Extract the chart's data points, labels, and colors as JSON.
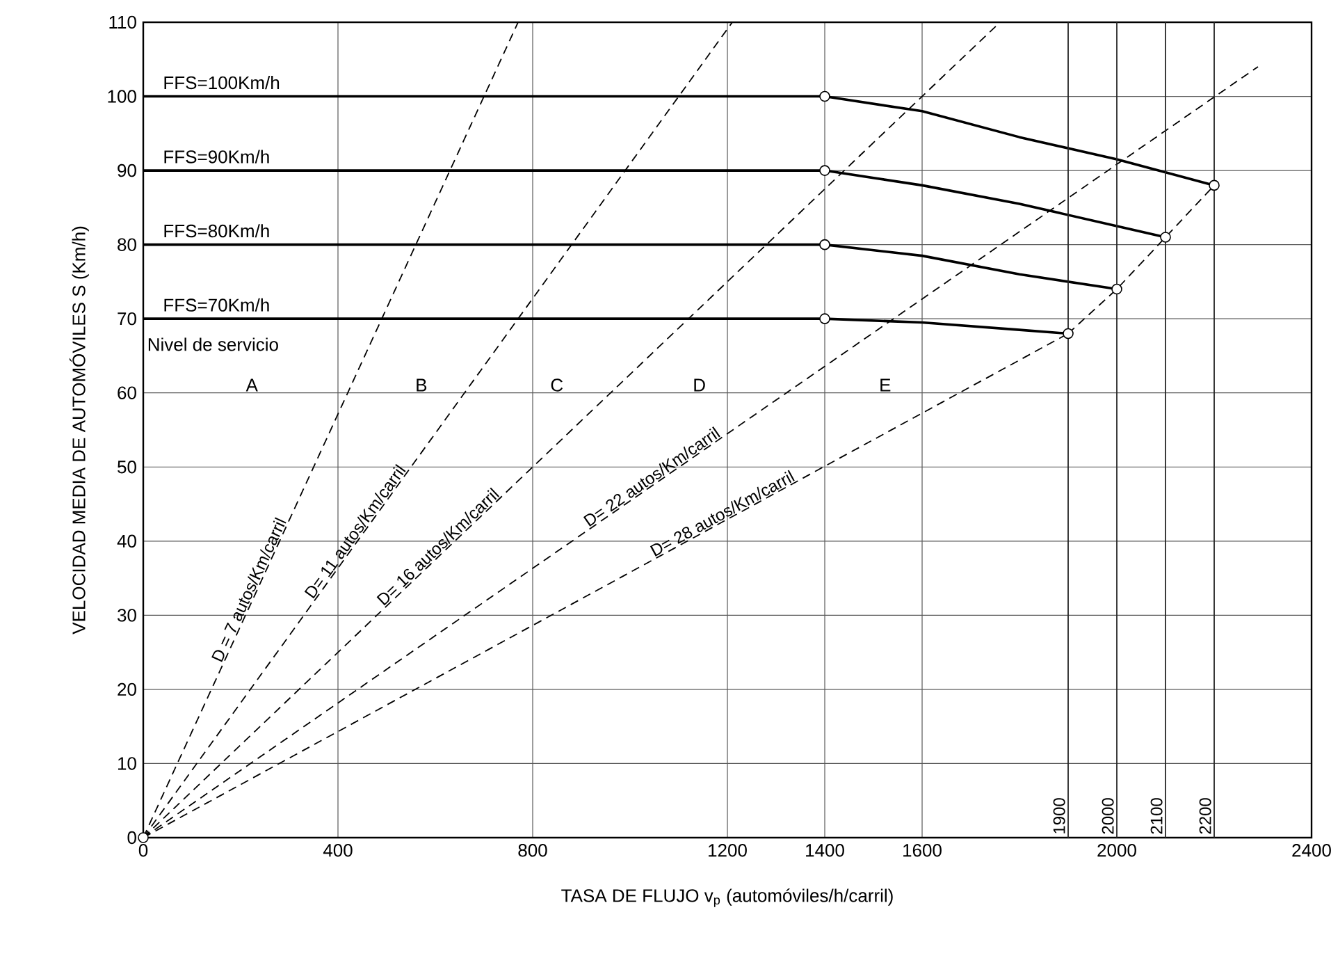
{
  "chart_data": {
    "type": "line",
    "xlabel": "TASA DE FLUJO v$_{p}$ (automóviles/h/carril)",
    "ylabel": "VELOCIDAD MEDIA DE AUTOMÓVILES S (Km/h)",
    "xlim": [
      0,
      2400
    ],
    "ylim": [
      0,
      110
    ],
    "xticks": [
      0,
      400,
      800,
      1200,
      1400,
      1600,
      2000,
      2400
    ],
    "ref_lines": [
      {
        "axis": "x",
        "value": 1900,
        "label": "1900"
      },
      {
        "axis": "x",
        "value": 2000,
        "label": "2000"
      },
      {
        "axis": "x",
        "value": 2100,
        "label": "2100"
      },
      {
        "axis": "x",
        "value": 2200,
        "label": "2200"
      }
    ],
    "yticks": [
      0,
      10,
      20,
      30,
      40,
      50,
      60,
      70,
      80,
      90,
      100,
      110
    ],
    "grid": true,
    "series": [
      {
        "name": "FFS=100Km/h",
        "color": "#000000",
        "line_style": "solid",
        "x": [
          0,
          1400,
          1600,
          1800,
          2000,
          2200
        ],
        "values": [
          100,
          100,
          98,
          94.5,
          91.5,
          88
        ]
      },
      {
        "name": "FFS=90Km/h",
        "color": "#000000",
        "line_style": "solid",
        "x": [
          0,
          1400,
          1600,
          1800,
          2000,
          2100
        ],
        "values": [
          90,
          90,
          88,
          85.5,
          82.5,
          81
        ]
      },
      {
        "name": "FFS=80Km/h",
        "color": "#000000",
        "line_style": "solid",
        "x": [
          0,
          1400,
          1600,
          1800,
          2000
        ],
        "values": [
          80,
          80,
          78.5,
          76,
          74
        ]
      },
      {
        "name": "FFS=70Km/h",
        "color": "#000000",
        "line_style": "solid",
        "x": [
          0,
          1400,
          1600,
          1800,
          1900
        ],
        "values": [
          70,
          70,
          69.5,
          68.5,
          68
        ]
      },
      {
        "name": "D = 7 autos/Km/carril",
        "color": "#000000",
        "line_style": "dashed",
        "x": [
          0,
          770
        ],
        "values": [
          0,
          110
        ]
      },
      {
        "name": "D= 11 autos/Km/carril",
        "color": "#000000",
        "line_style": "dashed",
        "x": [
          0,
          1210
        ],
        "values": [
          0,
          110
        ]
      },
      {
        "name": "D= 16 autos/Km/carril",
        "color": "#000000",
        "line_style": "dashed",
        "x": [
          0,
          1760
        ],
        "values": [
          0,
          110
        ]
      },
      {
        "name": "D= 22 autos/Km/carril",
        "color": "#000000",
        "line_style": "dashed",
        "x": [
          0,
          2290
        ],
        "values": [
          0,
          104
        ]
      },
      {
        "name": "D= 28 autos/Km/carril",
        "color": "#000000",
        "line_style": "dashed",
        "x": [
          0,
          1900
        ],
        "values": [
          0,
          68
        ]
      },
      {
        "color": "#000000",
        "line_style": "dashed",
        "x": [
          1900,
          2000,
          2100,
          2200
        ],
        "values": [
          68,
          74,
          81,
          88
        ]
      },
      {
        "type": "scatter",
        "marker": "circle",
        "color": "#000000",
        "x": [
          0,
          1400,
          1400,
          1400,
          1400,
          1900,
          2000,
          2100,
          2200
        ],
        "values": [
          0,
          100,
          90,
          80,
          70,
          68,
          74,
          81,
          88
        ]
      }
    ],
    "annotations": [
      "Nivel de servicio",
      "A",
      "B",
      "C",
      "D",
      "E"
    ]
  }
}
